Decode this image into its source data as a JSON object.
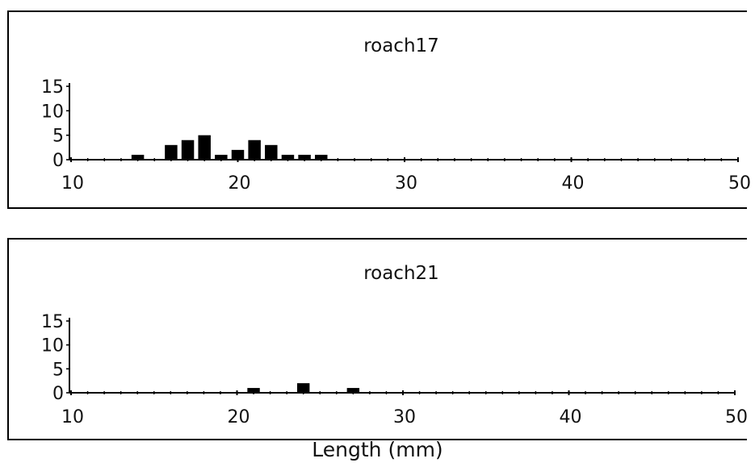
{
  "chart_data": [
    {
      "type": "bar",
      "title": "roach17",
      "x": [
        14,
        16,
        17,
        18,
        19,
        20,
        21,
        22,
        23,
        24,
        25
      ],
      "values": [
        1,
        3,
        4,
        5,
        1,
        2,
        4,
        3,
        1,
        1,
        1
      ],
      "xlim": [
        10,
        50
      ],
      "ylim": [
        0,
        15
      ],
      "x_ticks": [
        "10",
        "20",
        "30",
        "40",
        "50"
      ],
      "y_ticks": [
        "15",
        "10",
        "5",
        "0"
      ],
      "grid": false,
      "color": "#000000"
    },
    {
      "type": "bar",
      "title": "roach21",
      "x": [
        21,
        24,
        27
      ],
      "values": [
        1,
        2,
        1
      ],
      "xlim": [
        10,
        50
      ],
      "ylim": [
        0,
        15
      ],
      "x_ticks": [
        "10",
        "20",
        "30",
        "40",
        "50"
      ],
      "y_ticks": [
        "15",
        "10",
        "5",
        "0"
      ],
      "grid": false,
      "color": "#000000"
    }
  ],
  "shared_xlabel": "Length (mm)"
}
